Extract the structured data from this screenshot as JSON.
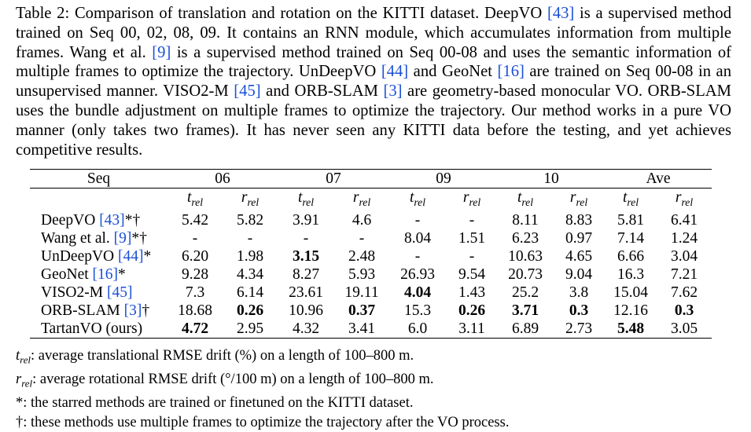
{
  "caption": {
    "p1": "Table 2: Comparison of translation and rotation on the KITTI dataset. DeepVO ",
    "r1": "[43]",
    "p2": " is a supervised method trained on Seq 00, 02, 08, 09. It contains an RNN module, which accumulates information from multiple frames. Wang et al. ",
    "r2": "[9]",
    "p3": " is a supervised method trained on Seq 00-08 and uses the semantic information of multiple frames to optimize the trajectory. UnDeepVO ",
    "r3": "[44]",
    "p4": " and GeoNet ",
    "r4": "[16]",
    "p5": " are trained on Seq 00-08 in an unsupervised manner. VISO2-M ",
    "r5": "[45]",
    "p6": " and ORB-SLAM ",
    "r6": "[3]",
    "p7": " are geometry-based monocular VO. ORB-SLAM uses the bundle adjustment on multiple frames to optimize the trajectory. Our method works in a pure VO manner (only takes two frames). It has never seen any KITTI data before the testing, and yet achieves competitive results."
  },
  "table": {
    "seq_header": "Seq",
    "groups": [
      "06",
      "07",
      "09",
      "10",
      "Ave"
    ],
    "sub": {
      "t": "t",
      "r": "r",
      "subscript": "rel"
    },
    "rows": [
      {
        "name": "DeepVO ",
        "ref": "[43]",
        "suffix": "*†",
        "values": [
          "5.42",
          "5.82",
          "3.91",
          "4.6",
          "-",
          "-",
          "8.11",
          "8.83",
          "5.81",
          "6.41"
        ]
      },
      {
        "name": "Wang et al. ",
        "ref": "[9]",
        "suffix": "*†",
        "values": [
          "-",
          "-",
          "-",
          "-",
          "8.04",
          "1.51",
          "6.23",
          "0.97",
          "7.14",
          "1.24"
        ]
      },
      {
        "name": "UnDeepVO ",
        "ref": "[44]",
        "suffix": "*",
        "values": [
          "6.20",
          "1.98",
          "3.15",
          "2.48",
          "-",
          "-",
          "10.63",
          "4.65",
          "6.66",
          "3.04"
        ]
      },
      {
        "name": "GeoNet ",
        "ref": "[16]",
        "suffix": "*",
        "values": [
          "9.28",
          "4.34",
          "8.27",
          "5.93",
          "26.93",
          "9.54",
          "20.73",
          "9.04",
          "16.3",
          "7.21"
        ]
      },
      {
        "name": "VISO2-M ",
        "ref": "[45]",
        "suffix": "",
        "values": [
          "7.3",
          "6.14",
          "23.61",
          "19.11",
          "4.04",
          "1.43",
          "25.2",
          "3.8",
          "15.04",
          "7.62"
        ]
      },
      {
        "name": "ORB-SLAM ",
        "ref": "[3]",
        "suffix": "†",
        "values": [
          "18.68",
          "0.26",
          "10.96",
          "0.37",
          "15.3",
          "0.26",
          "3.71",
          "0.3",
          "12.16",
          "0.3"
        ]
      },
      {
        "name": "TartanVO (ours)",
        "ref": "",
        "suffix": "",
        "values": [
          "4.72",
          "2.95",
          "4.32",
          "3.41",
          "6.0",
          "3.11",
          "6.89",
          "2.73",
          "5.48",
          "3.05"
        ]
      }
    ]
  },
  "notes": {
    "n1": ": average translational RMSE drift (%) on a length of 100–800 m.",
    "n2": ": average rotational RMSE drift (°/100 m) on a length of 100–800 m.",
    "n3": "*: the starred methods are trained or finetuned on the KITTI dataset.",
    "n4": "†: these methods use multiple frames to optimize the trajectory after the VO process."
  }
}
